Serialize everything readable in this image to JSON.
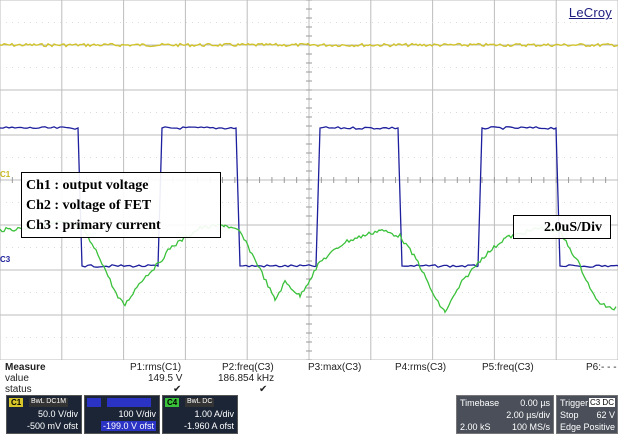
{
  "screen": {
    "logo": "LeCroy",
    "ch1_marker": "C1",
    "ch3_marker": "C3",
    "legend_lines": [
      "Ch1 : output voltage",
      "Ch2 : voltage of FET",
      "Ch3 : primary current"
    ],
    "time_div": "2.0uS/Div"
  },
  "measure": {
    "title": "Measure",
    "row_labels": [
      "value",
      "status"
    ],
    "params": [
      {
        "name": "P1:rms(C1)",
        "value": "149.5 V",
        "status": "✔"
      },
      {
        "name": "P2:freq(C3)",
        "value": "186.854 kHz",
        "status": "✔"
      },
      {
        "name": "P3:max(C3)",
        "value": "",
        "status": ""
      },
      {
        "name": "P4:rms(C3)",
        "value": "",
        "status": ""
      },
      {
        "name": "P5:freq(C3)",
        "value": "",
        "status": ""
      },
      {
        "name": "P6:- - -",
        "value": "",
        "status": ""
      }
    ]
  },
  "channels": [
    {
      "tag": "C1",
      "coupling": "BwL DC1M",
      "vdiv": "50.0 V/div",
      "offset": "-500 mV ofst",
      "color": "#d6c62a"
    },
    {
      "tag": "C2",
      "coupling": "",
      "vdiv": "100 V/div",
      "offset": "-199.0 V ofst",
      "color": "#2b33c4"
    },
    {
      "tag": "C4",
      "coupling": "BwL DC",
      "vdiv": "1.00 A/div",
      "offset": "-1.960 A ofst",
      "color": "#39c239"
    }
  ],
  "timebase": {
    "label": "Timebase",
    "delay": "0.00 µs",
    "div": "2.00 µs/div",
    "samples": "2.00 kS",
    "rate": "100 MS/s"
  },
  "trigger": {
    "label": "Trigger",
    "source": "C3 DC",
    "mode": "Stop",
    "level": "62 V",
    "type": "Edge",
    "slope": "Positive"
  },
  "trace_colors": {
    "ch1": "#cfc22a",
    "ch2": "#1d1f9c",
    "ch3": "#3bc13b",
    "grid": "#bdbdbd"
  }
}
